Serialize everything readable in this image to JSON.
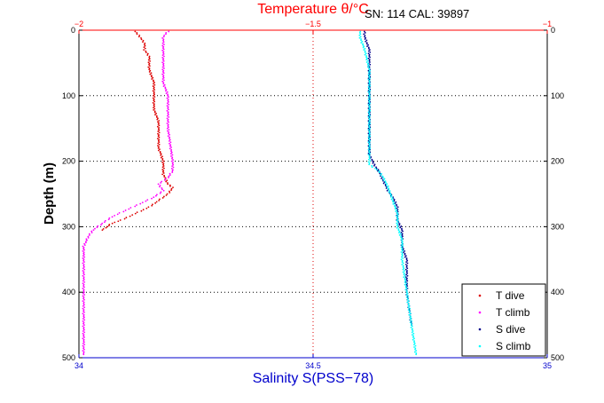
{
  "chart_data": {
    "type": "scatter",
    "title": "SN: 114  CAL: 39897",
    "xlabel_top": "Temperature θ/°C",
    "xlabel_bottom": "Salinity S(PSS−78)",
    "ylabel": "Depth (m)",
    "xlim_top": [
      -2,
      -1
    ],
    "xlim_bottom": [
      34,
      35
    ],
    "ylim": [
      0,
      500
    ],
    "y_reversed": true,
    "top_ticks": [
      "−2",
      "−1.5",
      "−1"
    ],
    "top_tick_values": [
      -2,
      -1.5,
      -1
    ],
    "bottom_ticks": [
      "34",
      "34.5",
      "35"
    ],
    "bottom_tick_values": [
      34,
      34.5,
      35
    ],
    "y_ticks": [
      "0",
      "100",
      "200",
      "300",
      "400",
      "500"
    ],
    "y_tick_values": [
      0,
      100,
      200,
      300,
      400,
      500
    ],
    "grid": "dotted",
    "legend_position": "bottom-right",
    "colors": {
      "top_axis": "#ff0000",
      "bottom_axis": "#0000cc",
      "t_dive": "#dd0000",
      "t_climb": "#ff00ff",
      "s_dive": "#00008b",
      "s_climb": "#00ffff"
    },
    "series": [
      {
        "name": "T dive",
        "axis": "top",
        "color_key": "t_dive",
        "y": [
          2,
          10,
          20,
          30,
          40,
          60,
          80,
          100,
          120,
          140,
          160,
          180,
          200,
          220,
          235,
          240,
          250,
          260,
          270,
          280,
          290,
          295,
          300,
          305
        ],
        "x": [
          -1.88,
          -1.87,
          -1.86,
          -1.86,
          -1.85,
          -1.85,
          -1.84,
          -1.84,
          -1.84,
          -1.83,
          -1.83,
          -1.83,
          -1.82,
          -1.82,
          -1.81,
          -1.8,
          -1.81,
          -1.83,
          -1.85,
          -1.88,
          -1.91,
          -1.93,
          -1.94,
          -1.95
        ]
      },
      {
        "name": "T climb",
        "axis": "top",
        "color_key": "t_climb",
        "y": [
          2,
          10,
          20,
          40,
          60,
          80,
          100,
          150,
          200,
          215,
          225,
          235,
          245,
          255,
          265,
          275,
          285,
          295,
          305,
          315,
          330,
          350,
          400,
          450,
          495
        ],
        "x": [
          -1.81,
          -1.82,
          -1.82,
          -1.82,
          -1.82,
          -1.82,
          -1.81,
          -1.81,
          -1.8,
          -1.8,
          -1.81,
          -1.83,
          -1.82,
          -1.84,
          -1.87,
          -1.9,
          -1.93,
          -1.95,
          -1.97,
          -1.98,
          -1.99,
          -1.99,
          -1.99,
          -1.99,
          -1.99
        ]
      },
      {
        "name": "S dive",
        "axis": "bottom",
        "color_key": "s_dive",
        "y": [
          2,
          10,
          30,
          60,
          100,
          150,
          190,
          205,
          215,
          230,
          245,
          255,
          270,
          290,
          305,
          330,
          350,
          400,
          450
        ],
        "x": [
          34.61,
          34.61,
          34.62,
          34.62,
          34.62,
          34.62,
          34.62,
          34.63,
          34.64,
          34.65,
          34.66,
          34.67,
          34.68,
          34.68,
          34.69,
          34.69,
          34.7,
          34.7,
          34.71
        ]
      },
      {
        "name": "S climb",
        "axis": "bottom",
        "color_key": "s_climb",
        "y": [
          2,
          10,
          30,
          60,
          100,
          150,
          190,
          205,
          215,
          225,
          240,
          260,
          280,
          300,
          320,
          350,
          400,
          450,
          495
        ],
        "x": [
          34.6,
          34.6,
          34.61,
          34.62,
          34.62,
          34.62,
          34.62,
          34.62,
          34.64,
          34.65,
          34.66,
          34.67,
          34.68,
          34.68,
          34.69,
          34.69,
          34.7,
          34.71,
          34.72
        ]
      }
    ]
  }
}
